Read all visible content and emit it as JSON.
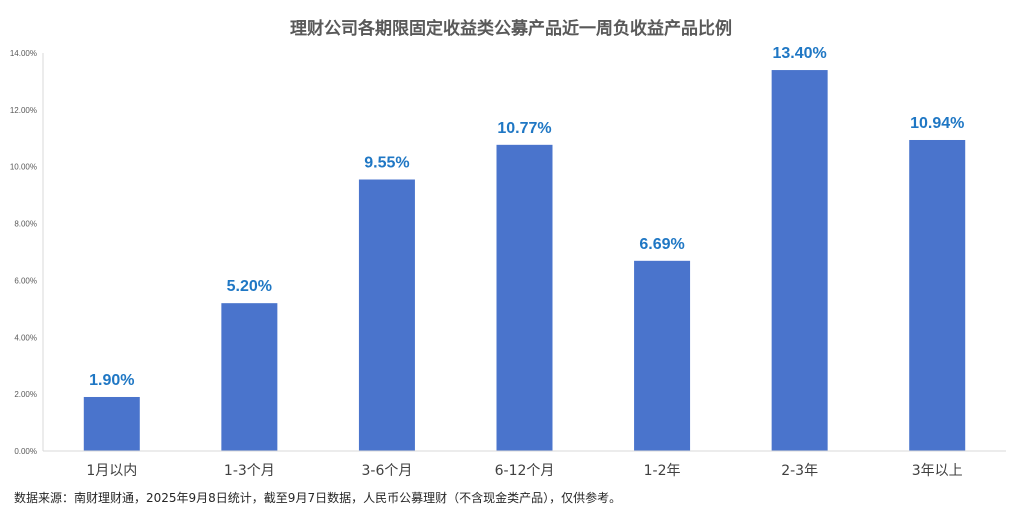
{
  "chart_data": {
    "type": "bar",
    "title": "理财公司各期限固定收益类公募产品近一周负收益产品比例",
    "categories": [
      "1月以内",
      "1-3个月",
      "3-6个月",
      "6-12个月",
      "1-2年",
      "2-3年",
      "3年以上"
    ],
    "values": [
      1.9,
      5.2,
      9.55,
      10.77,
      6.69,
      13.4,
      10.94
    ],
    "value_labels": [
      "1.90%",
      "5.20%",
      "9.55%",
      "10.77%",
      "6.69%",
      "13.40%",
      "10.94%"
    ],
    "ylim": [
      0,
      14
    ],
    "yticks": [
      0,
      2,
      4,
      6,
      8,
      10,
      12,
      14
    ],
    "ytick_labels": [
      "0.00%",
      "2.00%",
      "4.00%",
      "6.00%",
      "8.00%",
      "10.00%",
      "12.00%",
      "14.00%"
    ],
    "xlabel": "",
    "ylabel": "",
    "grid": false,
    "legend": "none",
    "bar_color": "#4a74cc",
    "label_color": "#1f77c4"
  },
  "source_note": "数据来源：南财理财通，2025年9月8日统计，截至9月7日数据，人民币公募理财（不含现金类产品），仅供参考。"
}
